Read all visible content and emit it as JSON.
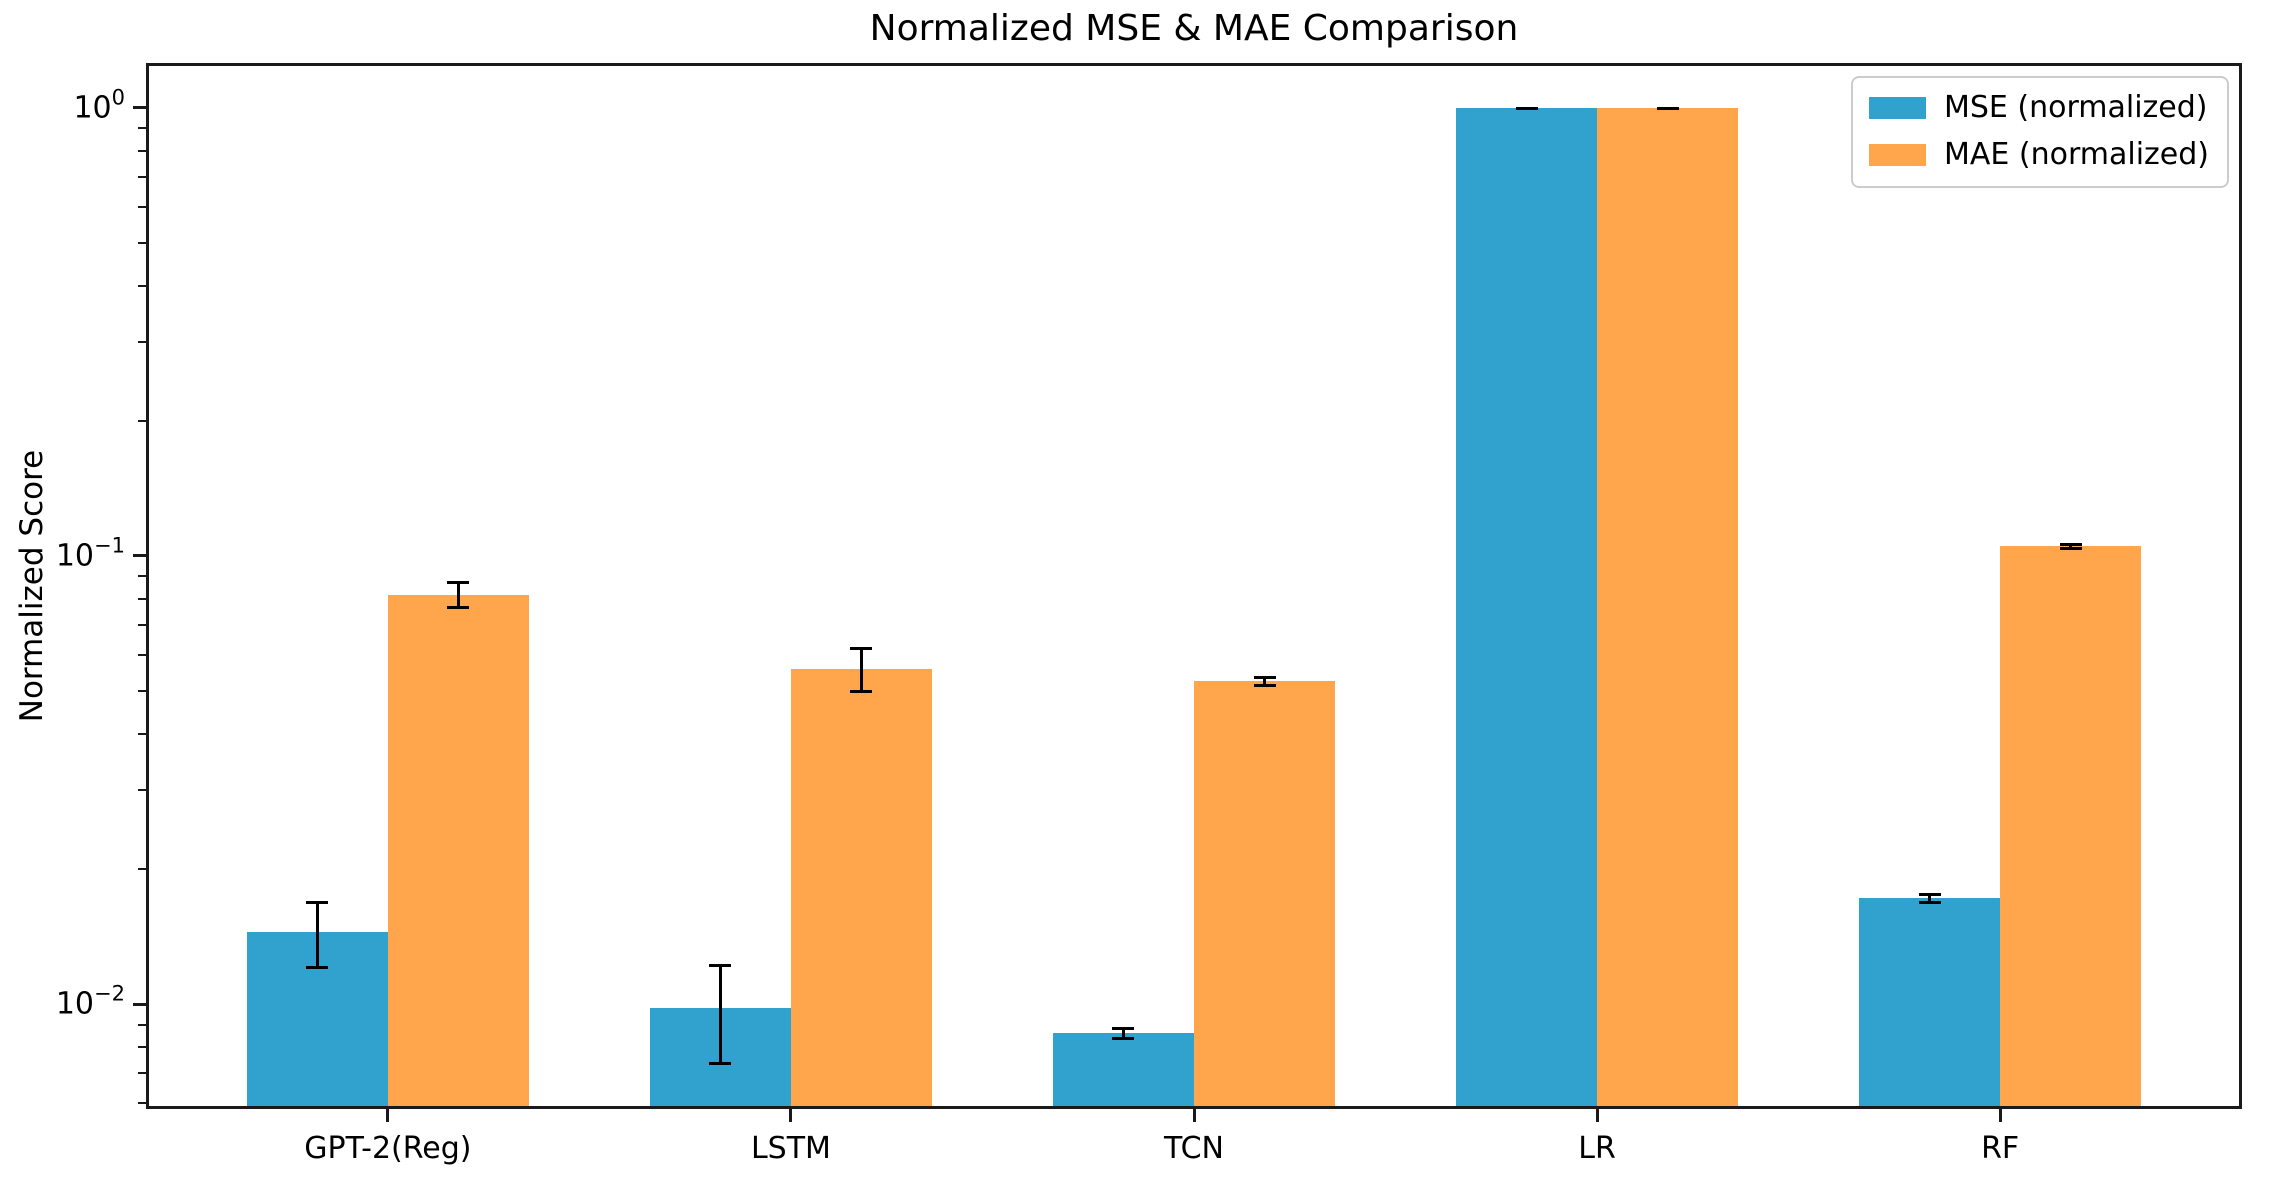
{
  "chart_data": {
    "type": "bar",
    "title": "Normalized MSE & MAE Comparison",
    "xlabel": "",
    "ylabel": "Normalized Score",
    "yscale": "log",
    "ylim": [
      0.00583,
      1.26
    ],
    "grid": false,
    "legend_position": "upper right",
    "background_color": "#ffffff",
    "spine_color": "#1a1a1a",
    "error_bar_color": "#000000",
    "categories": [
      "GPT-2(Reg)",
      "LSTM",
      "TCN",
      "LR",
      "RF"
    ],
    "series": [
      {
        "name": "MSE (normalized)",
        "color": "#31A1CD",
        "values": [
          0.0145,
          0.0098,
          0.0086,
          1.0,
          0.0172
        ],
        "errors": [
          0.0025,
          0.0025,
          0.0003,
          0.005,
          0.0005
        ]
      },
      {
        "name": "MAE (normalized)",
        "color": "#FFA64D",
        "values": [
          0.082,
          0.056,
          0.0525,
          1.0,
          0.105
        ],
        "errors": [
          0.006,
          0.0065,
          0.0015,
          0.005,
          0.002
        ]
      }
    ],
    "y_ticks": [
      {
        "value": 1,
        "base": "10",
        "exp": "0"
      },
      {
        "value": 0.1,
        "base": "10",
        "exp": "−1"
      },
      {
        "value": 0.01,
        "base": "10",
        "exp": "−2"
      }
    ]
  }
}
